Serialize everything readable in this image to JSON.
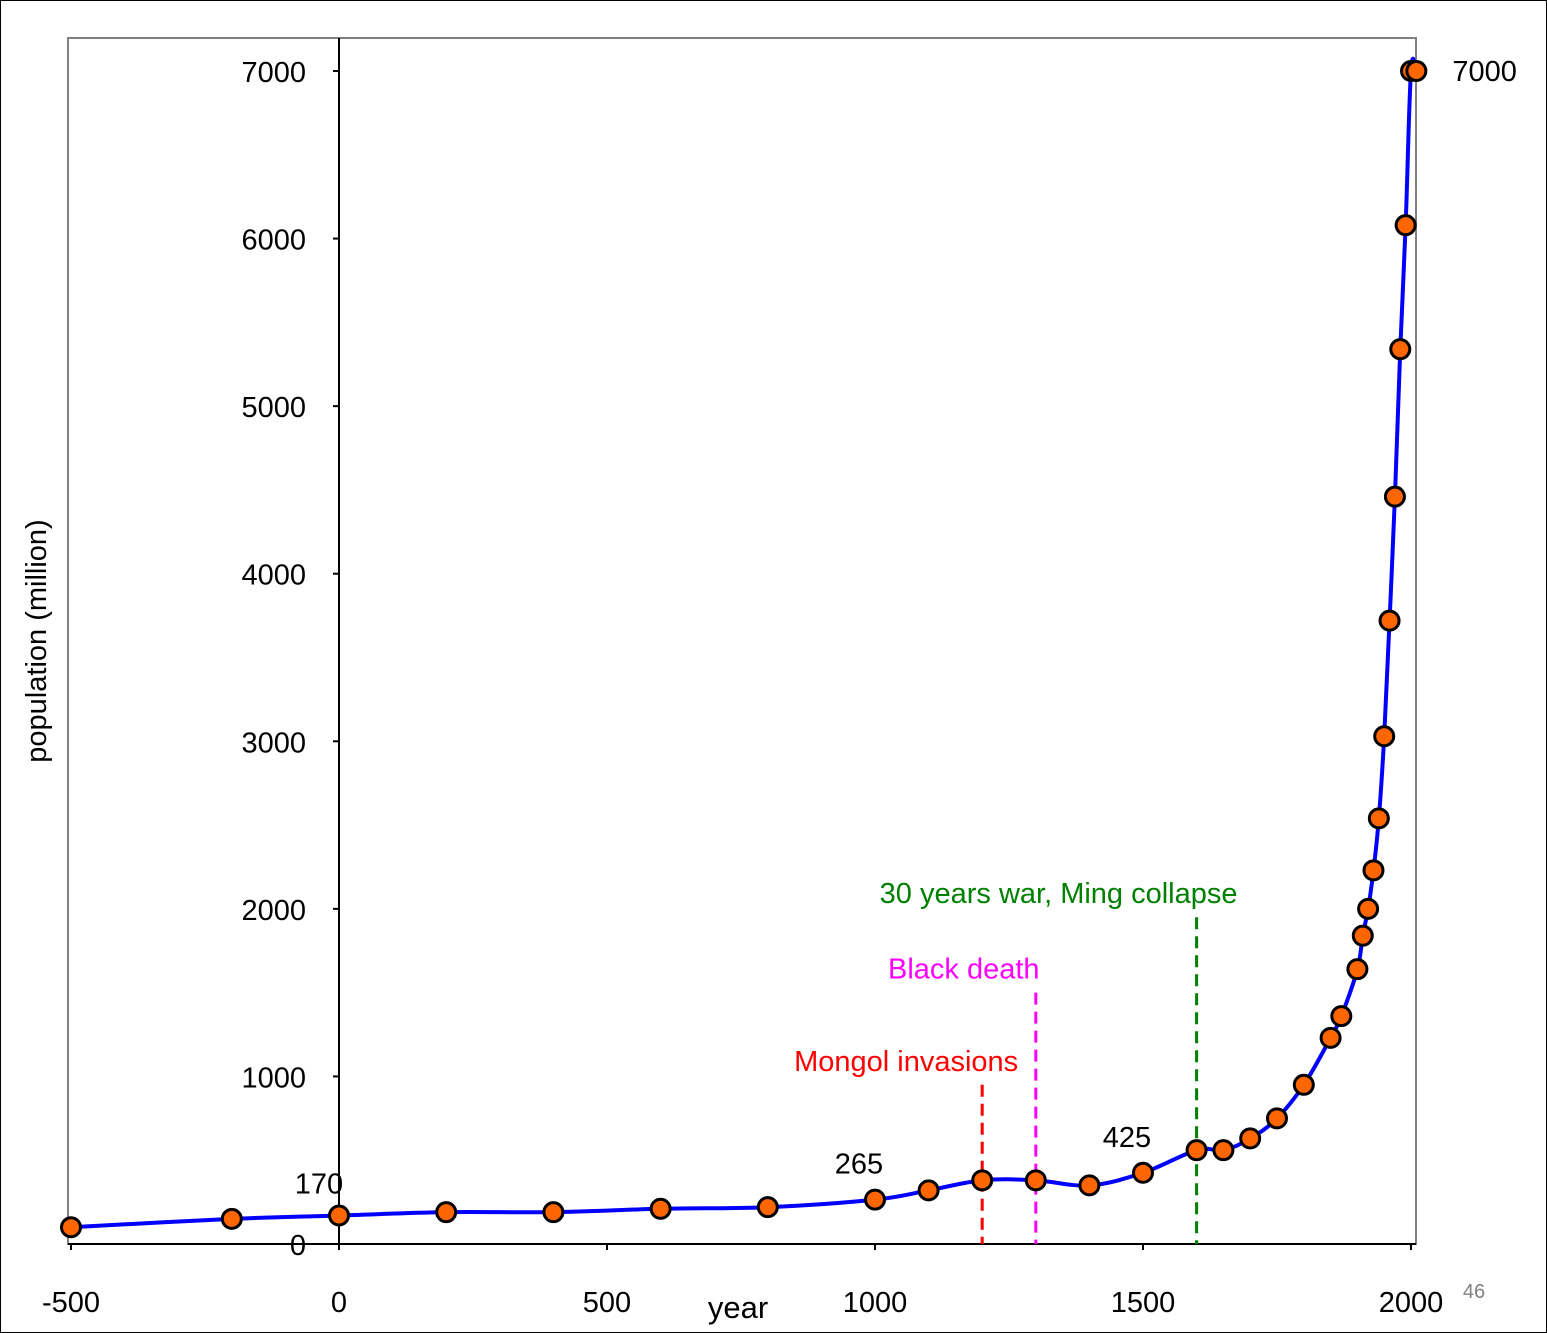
{
  "chart_data": {
    "type": "line",
    "xlabel": "year",
    "ylabel": "population (million)",
    "xlim": [
      -500,
      2000
    ],
    "ylim": [
      0,
      7000
    ],
    "x_ticks": [
      "-500",
      "0",
      "500",
      "1000",
      "1500",
      "2000"
    ],
    "y_ticks": [
      "0",
      "1000",
      "2000",
      "3000",
      "4000",
      "5000",
      "6000",
      "7000"
    ],
    "series": [
      {
        "x": [
          -500,
          -200,
          0,
          200,
          400,
          600,
          800,
          1000,
          1100,
          1200,
          1300,
          1400,
          1500,
          1600,
          1650,
          1700,
          1750,
          1800,
          1850,
          1870,
          1900,
          1910,
          1920,
          1930,
          1940,
          1950,
          1960,
          1970,
          1980,
          1990,
          2000,
          2010
        ],
        "y": [
          100,
          150,
          170,
          190,
          190,
          210,
          220,
          265,
          320,
          380,
          380,
          350,
          425,
          560,
          560,
          630,
          750,
          950,
          1230,
          1360,
          1640,
          1840,
          2000,
          2230,
          2540,
          3030,
          3720,
          4460,
          5340,
          6080,
          7000,
          7000
        ]
      }
    ],
    "point_labels": [
      {
        "x": 0,
        "text": "170"
      },
      {
        "x": 1000,
        "text": "265"
      },
      {
        "x": 1500,
        "text": "425"
      },
      {
        "x": 2010,
        "text": "7000"
      }
    ],
    "events": [
      {
        "x": 1200,
        "label": "Mongol invasions",
        "color": "#ff0000",
        "top": 950
      },
      {
        "x": 1300,
        "label": "Black death",
        "color": "#ff00ff",
        "top": 1500
      },
      {
        "x": 1600,
        "label": "30 years war, Ming collapse",
        "color": "#008000",
        "top": 1950
      }
    ],
    "colors": {
      "line": "#0000ff",
      "marker_fill": "#ff6600",
      "marker_edge": "#000000",
      "plot_border": "#808080"
    }
  },
  "page_number": "46"
}
